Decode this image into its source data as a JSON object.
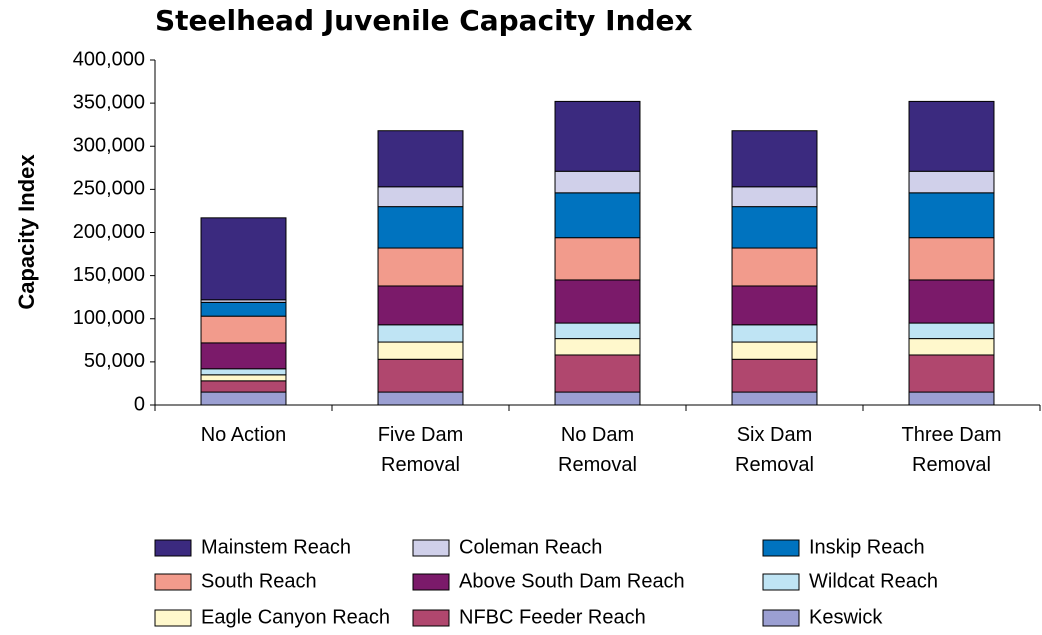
{
  "chart_data": {
    "type": "stacked_bar",
    "title": "Steelhead Juvenile Capacity Index",
    "y_label": "Capacity Index",
    "categories": [
      "No Action",
      "Five Dam Removal",
      "No Dam Removal",
      "Six Dam Removal",
      "Three Dam Removal"
    ],
    "ylim": [
      0,
      400000
    ],
    "yticks": [
      0,
      {
        "value": 50000,
        "label": "50,000"
      },
      {
        "value": 100000,
        "label": "100,000"
      },
      {
        "value": 150000,
        "label": "150,000"
      },
      {
        "value": 200000,
        "label": "200,000"
      },
      {
        "value": 250000,
        "label": "250,000"
      },
      {
        "value": 300000,
        "label": "300,000"
      },
      {
        "value": 350000,
        "label": "350,000"
      },
      {
        "value": 400000,
        "label": "400,000"
      }
    ],
    "series": [
      {
        "name": "Keswick",
        "color": "#9b9fd2",
        "values": [
          15000,
          15000,
          15000,
          15000,
          15000
        ]
      },
      {
        "name": "NFBC Feeder Reach",
        "color": "#b0476e",
        "values": [
          13000,
          38000,
          43000,
          38000,
          43000
        ]
      },
      {
        "name": "Eagle Canyon Reach",
        "color": "#fff8cc",
        "values": [
          7000,
          20000,
          19000,
          20000,
          19000
        ]
      },
      {
        "name": "Wildcat Reach",
        "color": "#bfe4f4",
        "values": [
          7000,
          20000,
          18000,
          20000,
          18000
        ]
      },
      {
        "name": "Above South Dam Reach",
        "color": "#7b1a6a",
        "values": [
          30000,
          45000,
          50000,
          45000,
          50000
        ]
      },
      {
        "name": "South Reach",
        "color": "#f29b8c",
        "values": [
          31000,
          44000,
          49000,
          44000,
          49000
        ]
      },
      {
        "name": "Inskip Reach",
        "color": "#0073bf",
        "values": [
          16000,
          48000,
          52000,
          48000,
          52000
        ]
      },
      {
        "name": "Coleman Reach",
        "color": "#d0d0ea",
        "values": [
          3000,
          23000,
          25000,
          23000,
          25000
        ]
      },
      {
        "name": "Mainstem Reach",
        "color": "#3b2a7f",
        "values": [
          95000,
          65000,
          81000,
          65000,
          81000
        ]
      }
    ]
  }
}
